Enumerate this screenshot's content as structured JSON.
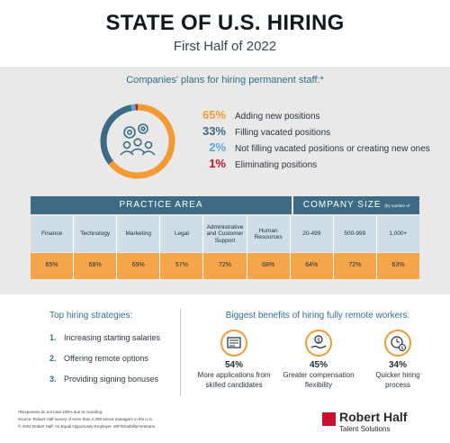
{
  "header": {
    "title": "STATE OF U.S. HIRING",
    "subtitle": "First Half of 2022"
  },
  "plans": {
    "heading": "Companies' plans for hiring permanent staff:*",
    "items": [
      {
        "pct": "65%",
        "label": "Adding new positions",
        "value": 65,
        "color": "#f39a35"
      },
      {
        "pct": "33%",
        "label": "Filling vacated positions",
        "value": 33,
        "color": "#3d6b86"
      },
      {
        "pct": "2%",
        "label": "Not filling vacated positions or creating new ones",
        "value": 2,
        "color": "#5aa7d6"
      },
      {
        "pct": "1%",
        "label": "Eliminating positions",
        "value": 1,
        "color": "#c8102e"
      }
    ]
  },
  "table": {
    "practice_header": "PRACTICE AREA",
    "company_header": "COMPANY SIZE",
    "company_note": "(by number of employees)",
    "columns": [
      "Finance",
      "Technology",
      "Marketing",
      "Legal",
      "Administrative and Customer Support",
      "Human Resources",
      "20-499",
      "500-999",
      "1,000+"
    ],
    "values": [
      "65%",
      "68%",
      "69%",
      "57%",
      "72%",
      "68%",
      "64%",
      "72%",
      "63%"
    ]
  },
  "strategies": {
    "title": "Top hiring strategies:",
    "items": [
      {
        "num": "1.",
        "label": "Increasing starting salaries"
      },
      {
        "num": "2.",
        "label": "Offering remote options"
      },
      {
        "num": "3.",
        "label": "Providing signing bonuses"
      }
    ]
  },
  "benefits": {
    "title": "Biggest benefits of hiring fully remote workers:",
    "items": [
      {
        "pct": "54%",
        "line1": "More applications from",
        "line2": "skilled candidates",
        "icon": "document-icon"
      },
      {
        "pct": "45%",
        "line1": "Greater compensation",
        "line2": "flexibility",
        "icon": "money-hand-icon"
      },
      {
        "pct": "34%",
        "line1": "Quicker hiring",
        "line2": "process",
        "icon": "clock-dollar-icon"
      }
    ]
  },
  "footnotes": {
    "line1": "*Responses do not total 100% due to rounding.",
    "line2": "Source: Robert Half survey of more than 2,300 senior managers in the U.S.",
    "line3": "© 2022 Robert Half. An Equal Opportunity Employer. M/F/Disability/Veterans"
  },
  "logo": {
    "name": "Robert Half",
    "tagline": "Talent Solutions"
  },
  "colors": {
    "orange": "#f39a35",
    "navy": "#3d6b86",
    "light_blue": "#5aa7d6",
    "red": "#c8102e"
  },
  "chart_data": [
    {
      "type": "pie",
      "title": "Companies' plans for hiring permanent staff:*",
      "categories": [
        "Adding new positions",
        "Filling vacated positions",
        "Not filling vacated positions or creating new ones",
        "Eliminating positions"
      ],
      "values": [
        65,
        33,
        2,
        1
      ]
    },
    {
      "type": "table",
      "columns": [
        "Finance",
        "Technology",
        "Marketing",
        "Legal",
        "Administrative and Customer Support",
        "Human Resources",
        "20-499",
        "500-999",
        "1,000+"
      ],
      "values": [
        65,
        68,
        69,
        57,
        72,
        68,
        64,
        72,
        63
      ]
    },
    {
      "type": "table",
      "title": "Biggest benefits of hiring fully remote workers:",
      "categories": [
        "More applications from skilled candidates",
        "Greater compensation flexibility",
        "Quicker hiring process"
      ],
      "values": [
        54,
        45,
        34
      ]
    }
  ]
}
